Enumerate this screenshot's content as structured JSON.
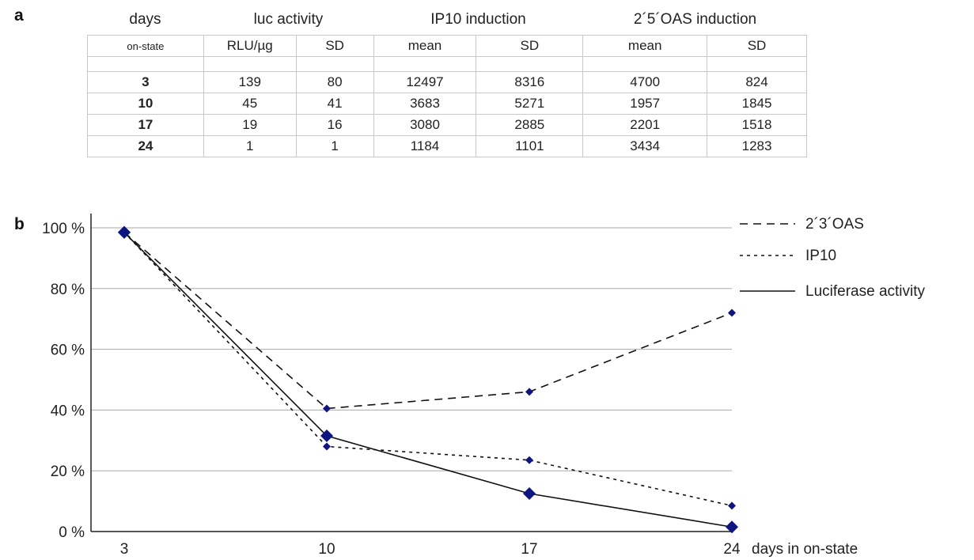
{
  "panel_a": {
    "label": "a",
    "top_headers": [
      "days",
      "luc activity",
      "IP10 induction",
      "2´5´OAS induction"
    ],
    "sub_headers": [
      "on-state",
      "RLU/µg",
      "SD",
      "mean",
      "SD",
      "mean",
      "SD"
    ],
    "rows": [
      [
        "3",
        "139",
        "80",
        "12497",
        "8316",
        "4700",
        "824"
      ],
      [
        "10",
        "45",
        "41",
        "3683",
        "5271",
        "1957",
        "1845"
      ],
      [
        "17",
        "19",
        "16",
        "3080",
        "2885",
        "2201",
        "1518"
      ],
      [
        "24",
        "1",
        "1",
        "1184",
        "1101",
        "3434",
        "1283"
      ]
    ]
  },
  "panel_b": {
    "label": "b"
  },
  "chart_data": {
    "type": "line",
    "x": [
      3,
      10,
      17,
      24
    ],
    "x_tick_labels": [
      "3",
      "10",
      "17",
      "24"
    ],
    "xlabel": "days in on-state",
    "ylabel": "",
    "y_tick_labels": [
      "0 %",
      "20 %",
      "40 %",
      "60 %",
      "80 %",
      "100 %"
    ],
    "y_ticks": [
      0,
      20,
      40,
      60,
      80,
      100
    ],
    "ylim": [
      0,
      100
    ],
    "grid": true,
    "legend_position": "top-right",
    "marker_color": "#0d1580",
    "series": [
      {
        "name": "2´3´OAS",
        "style": "dashed",
        "values": [
          98.5,
          40.5,
          46,
          72
        ]
      },
      {
        "name": "IP10",
        "style": "dotted",
        "values": [
          98.5,
          28,
          23.5,
          8.5
        ]
      },
      {
        "name": "Luciferase activity",
        "style": "solid",
        "values": [
          98.5,
          31.5,
          12.5,
          1.5
        ]
      }
    ]
  }
}
